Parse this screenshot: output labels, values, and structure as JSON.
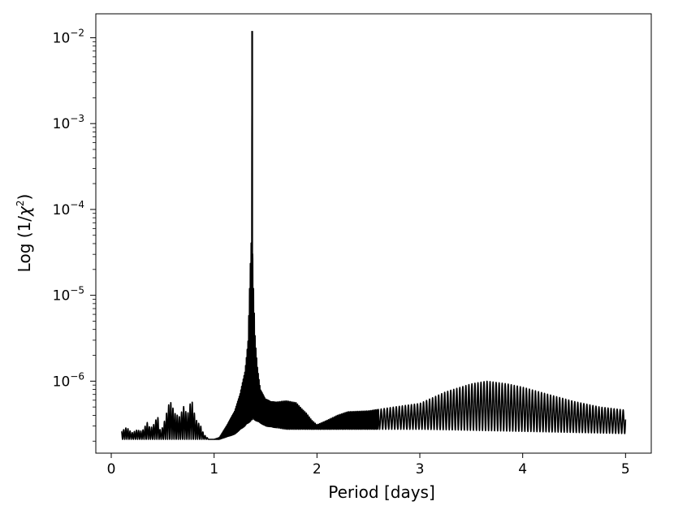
{
  "chart_data": {
    "type": "line",
    "title": "",
    "xlabel": "Period [days]",
    "ylabel": {
      "prefix": "Log (1/",
      "symbol": "χ",
      "exponent": "2",
      "suffix": ")"
    },
    "x_scale": "linear",
    "y_scale": "log",
    "xlim": [
      -0.15,
      5.25
    ],
    "ylim": [
      1.45e-07,
      0.019
    ],
    "grid": false,
    "legend": "none",
    "line_color": "#000000",
    "x_ticks": [
      {
        "value": 0,
        "label": "0"
      },
      {
        "value": 1,
        "label": "1"
      },
      {
        "value": 2,
        "label": "2"
      },
      {
        "value": 3,
        "label": "3"
      },
      {
        "value": 4,
        "label": "4"
      },
      {
        "value": 5,
        "label": "5"
      }
    ],
    "y_ticks": [
      {
        "value": 1e-06,
        "base": "10",
        "exponent": "−6"
      },
      {
        "value": 1e-05,
        "base": "10",
        "exponent": "−5"
      },
      {
        "value": 0.0001,
        "base": "10",
        "exponent": "−4"
      },
      {
        "value": 0.001,
        "base": "10",
        "exponent": "−3"
      },
      {
        "value": 0.01,
        "base": "10",
        "exponent": "−2"
      }
    ],
    "series": [
      {
        "lower_envelope": {
          "x": [
            0.1,
            0.3,
            0.5,
            0.7,
            0.9,
            1.05,
            1.2,
            1.3,
            1.38,
            1.5,
            1.7,
            1.9,
            2.0,
            2.3,
            3.0,
            4.0,
            5.0
          ],
          "y": [
            2.1e-07,
            2.1e-07,
            2.1e-07,
            2.1e-07,
            2.1e-07,
            2.1e-07,
            2.4e-07,
            3e-07,
            3.6e-07,
            3e-07,
            2.75e-07,
            2.75e-07,
            2.75e-07,
            2.75e-07,
            2.75e-07,
            2.6e-07,
            2.45e-07
          ]
        },
        "upper_envelope": {
          "x": [
            0.1,
            0.15,
            0.2,
            0.25,
            0.3,
            0.35,
            0.38,
            0.42,
            0.45,
            0.48,
            0.52,
            0.57,
            0.62,
            0.67,
            0.7,
            0.74,
            0.78,
            0.82,
            0.87,
            0.9,
            0.95,
            1.0,
            1.05,
            1.12,
            1.2,
            1.25,
            1.3,
            1.33,
            1.35,
            1.365,
            1.37,
            1.375,
            1.385,
            1.4,
            1.42,
            1.45,
            1.5,
            1.55,
            1.6,
            1.7,
            1.8,
            1.85,
            1.9,
            1.95,
            2.0,
            2.1,
            2.2,
            2.3,
            2.5,
            2.75,
            3.0,
            3.25,
            3.5,
            3.65,
            3.85,
            4.0,
            4.25,
            4.5,
            4.75,
            5.0
          ],
          "y": [
            2.6e-07,
            2.9e-07,
            2.5e-07,
            2.7e-07,
            2.6e-07,
            3.3e-07,
            2.8e-07,
            3.2e-07,
            4e-07,
            2.5e-07,
            3.5e-07,
            6e-07,
            4.2e-07,
            3.8e-07,
            5.2e-07,
            4e-07,
            6.3e-07,
            3.6e-07,
            3e-07,
            2.4e-07,
            2.1e-07,
            2.1e-07,
            2.2e-07,
            3e-07,
            4.5e-07,
            7e-07,
            1.3e-06,
            3e-06,
            2e-05,
            6e-05,
            0.012,
            3e-05,
            1e-05,
            3e-06,
            1.5e-06,
            8e-07,
            6.2e-07,
            5.8e-07,
            5.7e-07,
            5.9e-07,
            5.6e-07,
            4.8e-07,
            4.2e-07,
            3.5e-07,
            3.1e-07,
            3.5e-07,
            4e-07,
            4.4e-07,
            4.5e-07,
            5e-07,
            5.5e-07,
            7.5e-07,
            9.3e-07,
            1e-06,
            9.3e-07,
            8.5e-07,
            7e-07,
            5.8e-07,
            5e-07,
            4.6e-07
          ]
        }
      }
    ]
  }
}
